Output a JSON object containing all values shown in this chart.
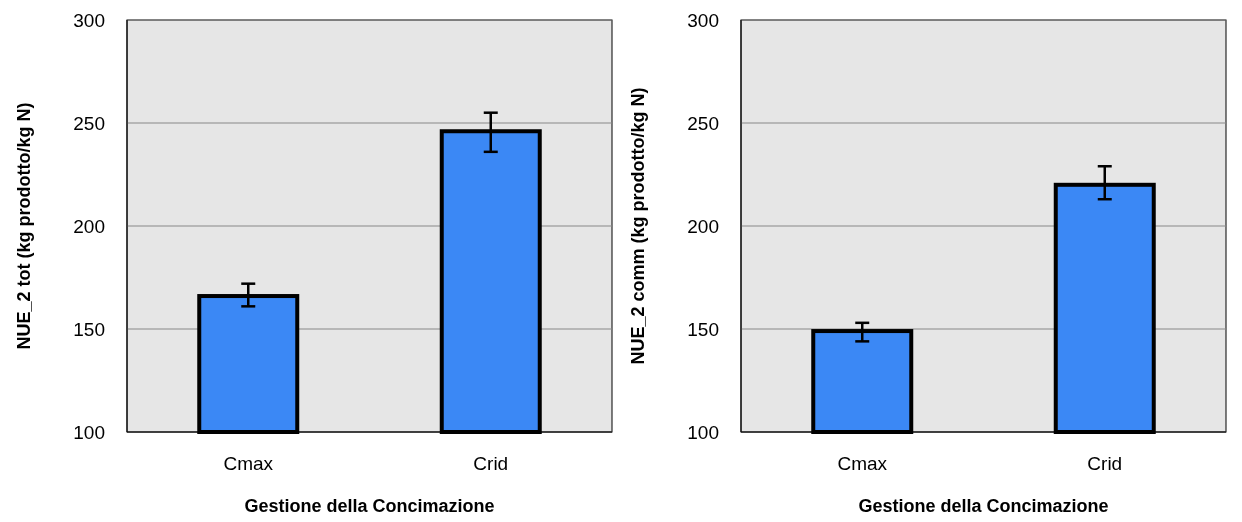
{
  "chart_data": [
    {
      "type": "bar",
      "categories": [
        "Cmax",
        "Crid"
      ],
      "values": [
        166,
        246
      ],
      "errors": [
        [
          161,
          172
        ],
        [
          236,
          255
        ]
      ],
      "color": "#3b88f5",
      "xlabel": "Gestione della Concimazione",
      "ylabel": "NUE_2 tot (kg prodotto/kg N)",
      "ylim": [
        100,
        300
      ],
      "yticks": [
        100,
        150,
        200,
        250,
        300
      ],
      "grid": "y"
    },
    {
      "type": "bar",
      "categories": [
        "Cmax",
        "Crid"
      ],
      "values": [
        149,
        220
      ],
      "errors": [
        [
          144,
          153
        ],
        [
          213,
          229
        ]
      ],
      "color": "#3b88f5",
      "xlabel": "Gestione della Concimazione",
      "ylabel": "NUE_2 comm (kg prodotto/kg N)",
      "ylim": [
        100,
        300
      ],
      "yticks": [
        100,
        150,
        200,
        250,
        300
      ],
      "grid": "y"
    }
  ]
}
